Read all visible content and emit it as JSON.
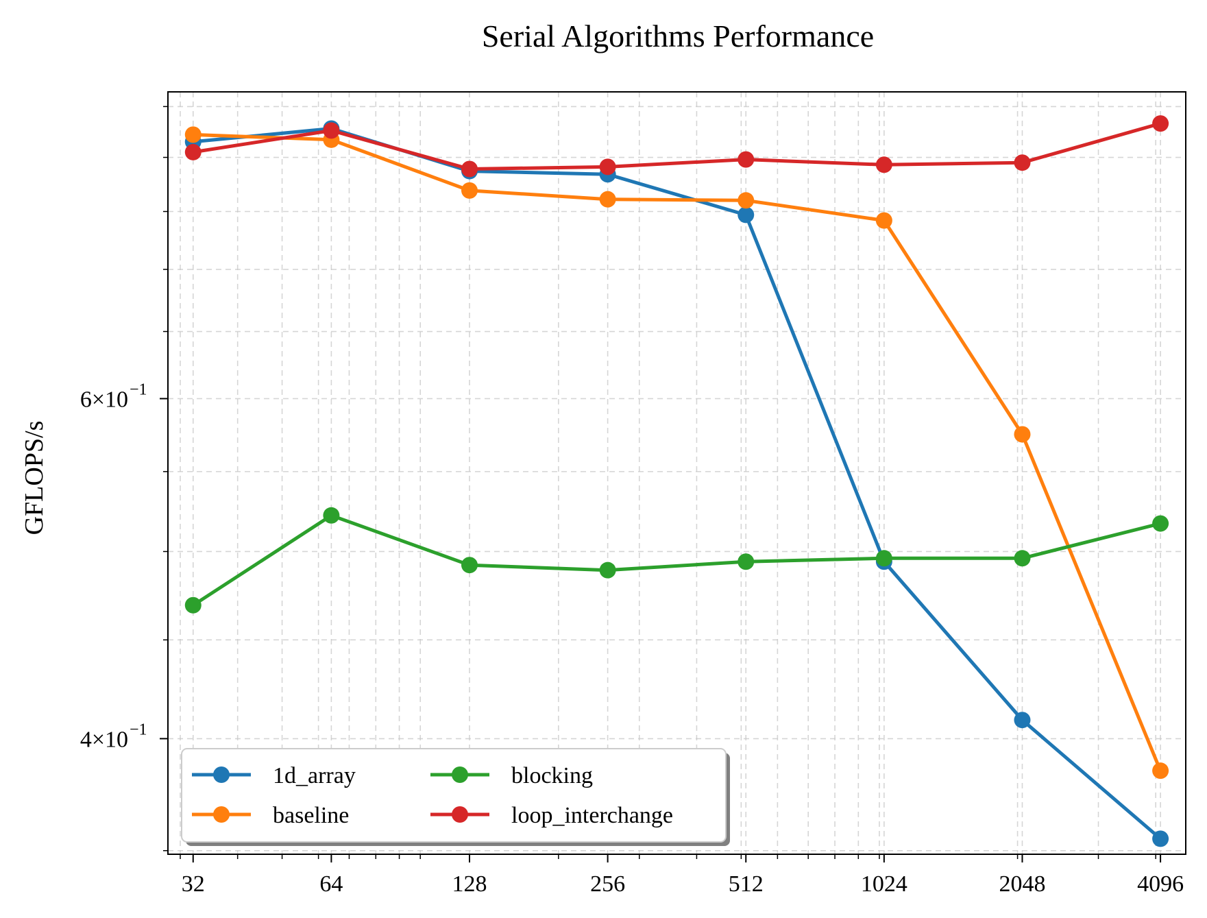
{
  "chart_data": {
    "type": "line",
    "title": "Serial Algorithms Performance",
    "xlabel": "",
    "ylabel": "GFLOPS/s",
    "x_scale": "log2",
    "y_scale": "log",
    "x": [
      32,
      64,
      128,
      256,
      512,
      1024,
      2048,
      4096
    ],
    "xticks": [
      "32",
      "64",
      "128",
      "256",
      "512",
      "1024",
      "2048",
      "4096"
    ],
    "xlim": [
      28.2,
      4650
    ],
    "ylim": [
      0.3485,
      0.865
    ],
    "yticks": [
      {
        "value": 0.4,
        "label": "4×10",
        "exp": "−1"
      },
      {
        "value": 0.6,
        "label": "6×10",
        "exp": "−1"
      }
    ],
    "grid": true,
    "legend": {
      "placement": "lower-left",
      "columns": 2
    },
    "series": [
      {
        "name": "1d_array",
        "color": "#1f77b4",
        "values": [
          0.815,
          0.828,
          0.787,
          0.784,
          0.747,
          0.494,
          0.409,
          0.355
        ]
      },
      {
        "name": "baseline",
        "color": "#ff7f0e",
        "values": [
          0.822,
          0.817,
          0.769,
          0.761,
          0.76,
          0.742,
          0.575,
          0.385
        ]
      },
      {
        "name": "blocking",
        "color": "#2ca02c",
        "values": [
          0.469,
          0.522,
          0.492,
          0.489,
          0.494,
          0.496,
          0.496,
          0.517
        ]
      },
      {
        "name": "loop_interchange",
        "color": "#d62728",
        "values": [
          0.805,
          0.826,
          0.789,
          0.791,
          0.798,
          0.793,
          0.795,
          0.833
        ]
      }
    ]
  }
}
